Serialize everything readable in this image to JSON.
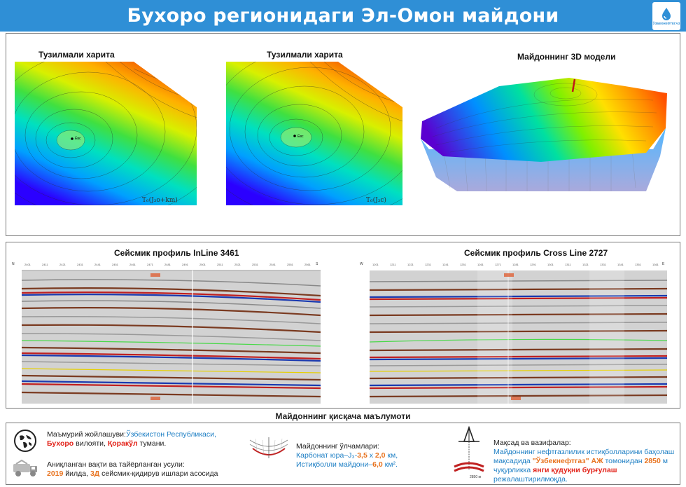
{
  "header": {
    "title": "Бухоро регионидаги Эл-Омон майдони",
    "logo_text": "ЎЗБЕКНЕФТЕГАЗ"
  },
  "maps": [
    {
      "title": "Тузилмали харита",
      "well_label": "Ёвс",
      "horizon_label": "T₆(J₃o+km)"
    },
    {
      "title": "Тузилмали харита",
      "well_label": "Ёвс",
      "horizon_label": "T₆(J₃c)"
    },
    {
      "title": "Майдоннинг 3D модели"
    }
  ],
  "seismic": [
    {
      "title": "Сейсмик профиль InLine 3461",
      "left_label": "N",
      "right_label": "S"
    },
    {
      "title": "Сейсмик профиль Cross Line 2727",
      "left_label": "W",
      "right_label": "E"
    }
  ],
  "summary_title": "Майдоннинг қисқача маълумоти",
  "info": {
    "location": {
      "label": "Маъмурий жойлашуви:",
      "country": "Ўзбекистон Республикаси,",
      "region": "Бухоро",
      "region_suffix": " вилояти, ",
      "district": "Қоракўл",
      "district_suffix": " тумани."
    },
    "discovery": {
      "label": "Аниқланган вақти ва тайёрланган усули:",
      "year": "2019",
      "year_suffix": " йилда, ",
      "method": "3Д",
      "method_suffix": " сейсмик-қидирув ишлари асосида"
    },
    "size": {
      "label": "Майдоннинг ўлчамлари:",
      "line1_prefix": "Карбонат юра–J₃-",
      "dim_a": "3,5",
      "x": " х ",
      "dim_b": "2,0",
      "km": " км,",
      "line2_prefix": "Истиқболли майдони–",
      "area": "6,0",
      "area_unit": " км²."
    },
    "goal": {
      "label": "Мақсад ва вазифалар:",
      "line1": "Майдоннинг нефтгазлилик истиқболларини баҳолаш",
      "line2_prefix": "мақсадида ",
      "company": "\"Ўзбекнефтгаз\" АЖ",
      "line2_mid": " томонидан ",
      "depth": "2850",
      "line2_suffix": " м",
      "line3_prefix": "чуқурликка ",
      "well": "янги қудуқни бурғулаш",
      "line3_suffix": " режалаштирилмоқда.",
      "depth_label": "2850 м"
    }
  },
  "colors": {
    "header": "#2f8fd6",
    "accent_blue": "#1e7fc4",
    "accent_red": "#e2231a",
    "accent_orange": "#e8731f"
  }
}
